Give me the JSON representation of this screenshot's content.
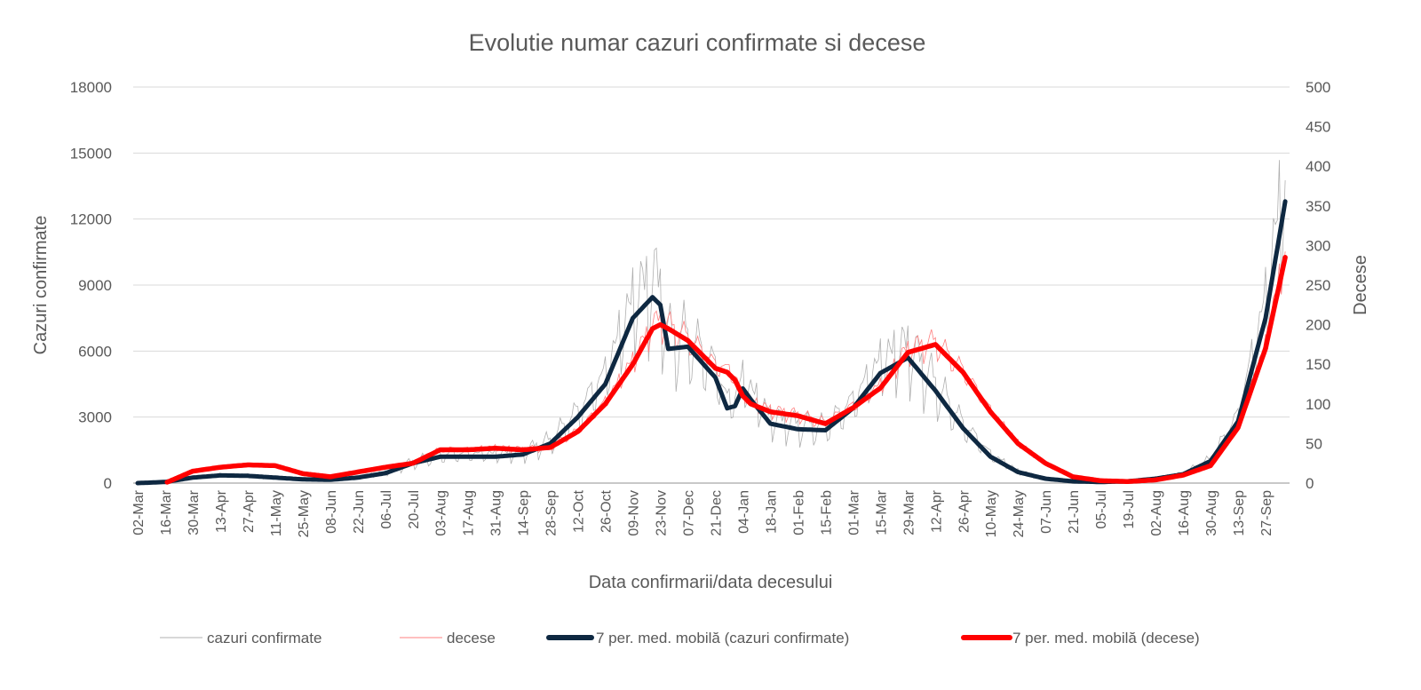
{
  "chart_data": {
    "type": "line",
    "title": "Evolutie numar cazuri confirmate si decese",
    "xlabel": "Data confirmarii/data decesului",
    "ylabel": "Cazuri confirmate",
    "y2label": "Decese",
    "ylim": [
      0,
      18000
    ],
    "y2lim": [
      0,
      500
    ],
    "yticks": [
      0,
      3000,
      6000,
      9000,
      12000,
      15000,
      18000
    ],
    "y2ticks": [
      0,
      50,
      100,
      150,
      200,
      250,
      300,
      350,
      400,
      450,
      500
    ],
    "grid": true,
    "legend_position": "bottom",
    "x_tick_labels": [
      "02-Mar",
      "16-Mar",
      "30-Mar",
      "13-Apr",
      "27-Apr",
      "11-May",
      "25-May",
      "08-Jun",
      "22-Jun",
      "06-Jul",
      "20-Jul",
      "03-Aug",
      "17-Aug",
      "31-Aug",
      "14-Sep",
      "28-Sep",
      "12-Oct",
      "26-Oct",
      "09-Nov",
      "23-Nov",
      "07-Dec",
      "21-Dec",
      "04-Jan",
      "18-Jan",
      "01-Feb",
      "15-Feb",
      "01-Mar",
      "15-Mar",
      "29-Mar",
      "12-Apr",
      "26-Apr",
      "10-May",
      "24-May",
      "07-Jun",
      "21-Jun",
      "05-Jul",
      "19-Jul",
      "02-Aug",
      "16-Aug",
      "30-Aug",
      "13-Sep",
      "27-Sep"
    ],
    "x_day_step": 14,
    "sample_days": [
      0,
      14,
      28,
      42,
      56,
      70,
      84,
      98,
      112,
      126,
      140,
      154,
      168,
      182,
      196,
      210,
      224,
      238,
      252,
      262,
      266,
      270,
      280,
      294,
      300,
      304,
      308,
      312,
      322,
      336,
      350,
      364,
      378,
      392,
      406,
      420,
      434,
      448,
      462,
      476,
      490,
      504,
      518,
      532,
      546,
      560,
      574,
      584
    ],
    "series": [
      {
        "name": "7 per. med. mobilă (cazuri confirmate)",
        "axis": "left",
        "color": "#0e2841",
        "values": [
          0,
          50,
          250,
          350,
          330,
          250,
          170,
          150,
          250,
          450,
          900,
          1200,
          1200,
          1200,
          1300,
          1800,
          3000,
          4500,
          7500,
          8450,
          8100,
          6100,
          6200,
          4800,
          3400,
          3500,
          4300,
          3800,
          2700,
          2450,
          2400,
          3400,
          5000,
          5700,
          4200,
          2500,
          1200,
          500,
          200,
          80,
          50,
          80,
          200,
          400,
          1000,
          2800,
          7500,
          12800
        ]
      },
      {
        "name": "7 per. med. mobilă (decese)",
        "axis": "right",
        "color": "#ff0000",
        "values": [
          null,
          0,
          15,
          20,
          23,
          22,
          12,
          8,
          14,
          20,
          25,
          42,
          42,
          44,
          42,
          45,
          65,
          100,
          150,
          195,
          200,
          195,
          180,
          145,
          140,
          130,
          110,
          100,
          90,
          85,
          75,
          95,
          120,
          165,
          175,
          140,
          90,
          50,
          25,
          8,
          3,
          2,
          4,
          10,
          22,
          70,
          170,
          285
        ]
      },
      {
        "name": "cazuri confirmate",
        "axis": "left",
        "color": "#b0b0b0",
        "derived_from": 0,
        "weekly_variation": 0.35
      },
      {
        "name": "decese",
        "axis": "right",
        "color": "#ff8080",
        "derived_from": 1,
        "weekly_variation": 0.12
      }
    ],
    "weekday_factors": [
      0.9,
      -1.0,
      -0.6,
      0.3,
      0.8,
      1.0,
      0.6
    ]
  },
  "legend": {
    "raw_cases": "cazuri confirmate",
    "raw_deaths": "decese",
    "ma_cases": "7 per. med. mobilă (cazuri confirmate)",
    "ma_deaths": "7 per. med. mobilă (decese)"
  }
}
